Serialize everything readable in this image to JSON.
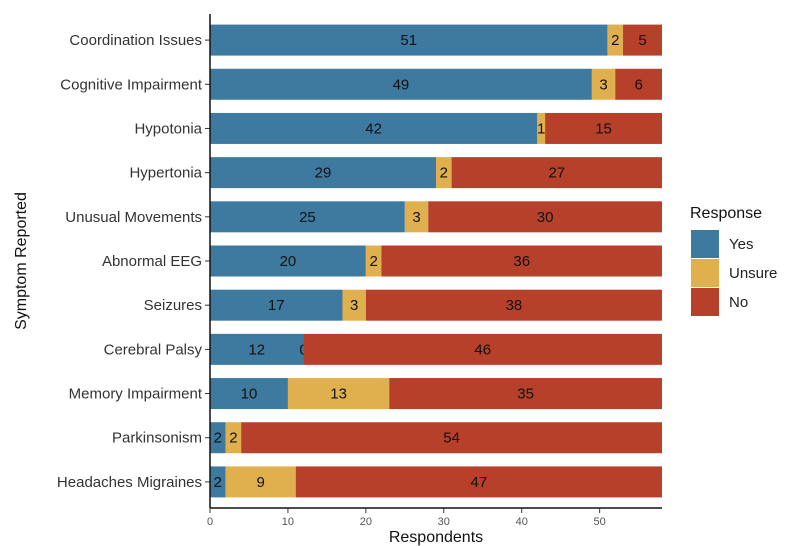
{
  "chart_data": {
    "type": "bar",
    "orientation": "horizontal",
    "stacked": true,
    "xlabel": "Respondents",
    "ylabel": "Symptom Reported",
    "xlim": [
      0,
      58
    ],
    "x_ticks": [
      0,
      10,
      20,
      30,
      40,
      50
    ],
    "grid": false,
    "legend": {
      "title": "Response",
      "position": "right"
    },
    "categories": [
      "Coordination Issues",
      "Cognitive Impairment",
      "Hypotonia",
      "Hypertonia",
      "Unusual Movements",
      "Abnormal EEG",
      "Seizures",
      "Cerebral Palsy",
      "Memory Impairment",
      "Parkinsonism",
      "Headaches Migraines"
    ],
    "series": [
      {
        "name": "Yes",
        "color": "#3E7AA0",
        "values": [
          51,
          49,
          42,
          29,
          25,
          20,
          17,
          12,
          10,
          2,
          2
        ]
      },
      {
        "name": "Unsure",
        "color": "#E1B04E",
        "values": [
          2,
          3,
          1,
          2,
          3,
          2,
          3,
          0,
          13,
          2,
          9
        ]
      },
      {
        "name": "No",
        "color": "#B7402A",
        "values": [
          5,
          6,
          15,
          27,
          30,
          36,
          38,
          46,
          35,
          54,
          47
        ]
      }
    ]
  }
}
